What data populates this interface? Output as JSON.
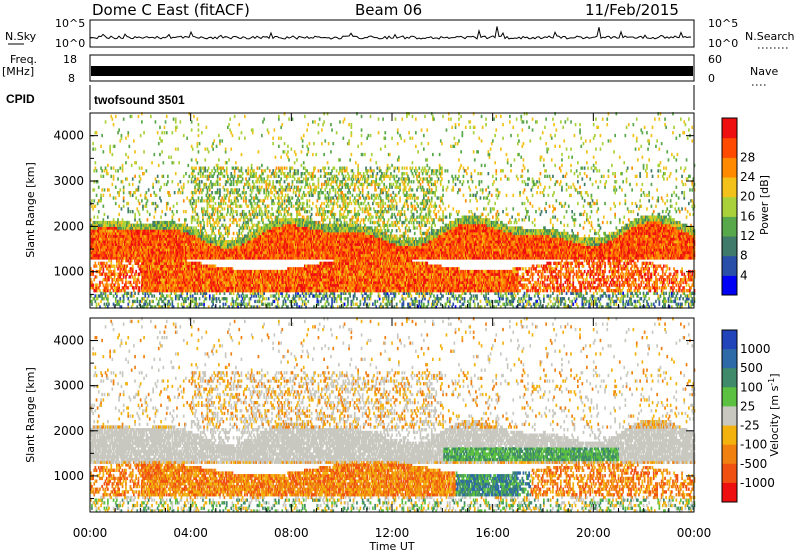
{
  "header": {
    "title": "Dome C East (fitACF)",
    "beam": "Beam 06",
    "date": "11/Feb/2015"
  },
  "top_panels": {
    "nsky_label": "N.Sky",
    "nsky_ticks": [
      "10^5",
      "10^0"
    ],
    "nsearch_label": "N.Search",
    "nsearch_ticks": [
      "10^5",
      "10^0"
    ],
    "freq_label": "Freq.",
    "freq_unit": "[MHz]",
    "freq_ticks": [
      "18",
      "8"
    ],
    "nave_label": "Nave",
    "nave_ticks": [
      "60",
      "0"
    ],
    "cpid_label": "CPID",
    "cpid_value": "twofsound 3501"
  },
  "colors": {
    "power": [
      "#0000f5",
      "#2a4fa8",
      "#3f7a6a",
      "#57a84a",
      "#a9d13a",
      "#f2c21a",
      "#ff8a00",
      "#ff4a00",
      "#ee1010"
    ],
    "velocity": [
      "#2244bb",
      "#2e6aa8",
      "#3f8a6a",
      "#5cc041",
      "#c8c8c0",
      "#f3b20e",
      "#f08010",
      "#f05010",
      "#ee1010"
    ]
  },
  "chart_data": [
    {
      "type": "heatmap",
      "title": "Power",
      "xlabel": "",
      "ylabel": "Slant Range [km]",
      "xlim": [
        0,
        24
      ],
      "ylim": [
        200,
        4500
      ],
      "y_ticks": [
        "1000",
        "2000",
        "3000",
        "4000"
      ],
      "colorbar": {
        "label": "Power [dB]",
        "range": [
          0,
          32
        ],
        "ticks": [
          "4",
          "8",
          "12",
          "16",
          "20",
          "24",
          "28"
        ]
      },
      "bands": [
        {
          "range_km": [
            1250,
            1950
          ],
          "level": 0.78
        },
        {
          "range_km": [
            600,
            1150
          ],
          "level": 0.85
        },
        {
          "range_km": [
            1950,
            3300
          ],
          "level": 0.45
        }
      ]
    },
    {
      "type": "heatmap",
      "title": "Velocity",
      "xlabel": "Time UT",
      "ylabel": "Slant Range [km]",
      "xlim": [
        0,
        24
      ],
      "ylim": [
        200,
        4500
      ],
      "x_ticks": [
        "00:00",
        "04:00",
        "08:00",
        "12:00",
        "16:00",
        "20:00",
        "00:00"
      ],
      "y_ticks": [
        "1000",
        "2000",
        "3000",
        "4000"
      ],
      "colorbar": {
        "label": "Velocity [m s^-1]",
        "ticks": [
          "1000",
          "500",
          "100",
          "25",
          "-25",
          "-100",
          "-500",
          "-1000"
        ]
      },
      "bands": [
        {
          "range_km": [
            1300,
            2000
          ],
          "level": "near zero (grey)"
        },
        {
          "range_km": [
            500,
            1200
          ],
          "level": "-100 to -500 (orange)"
        },
        {
          "range_km": [
            800,
            1600
          ],
          "level": "100 to 500 (green), 14:00-20:00"
        }
      ]
    }
  ]
}
